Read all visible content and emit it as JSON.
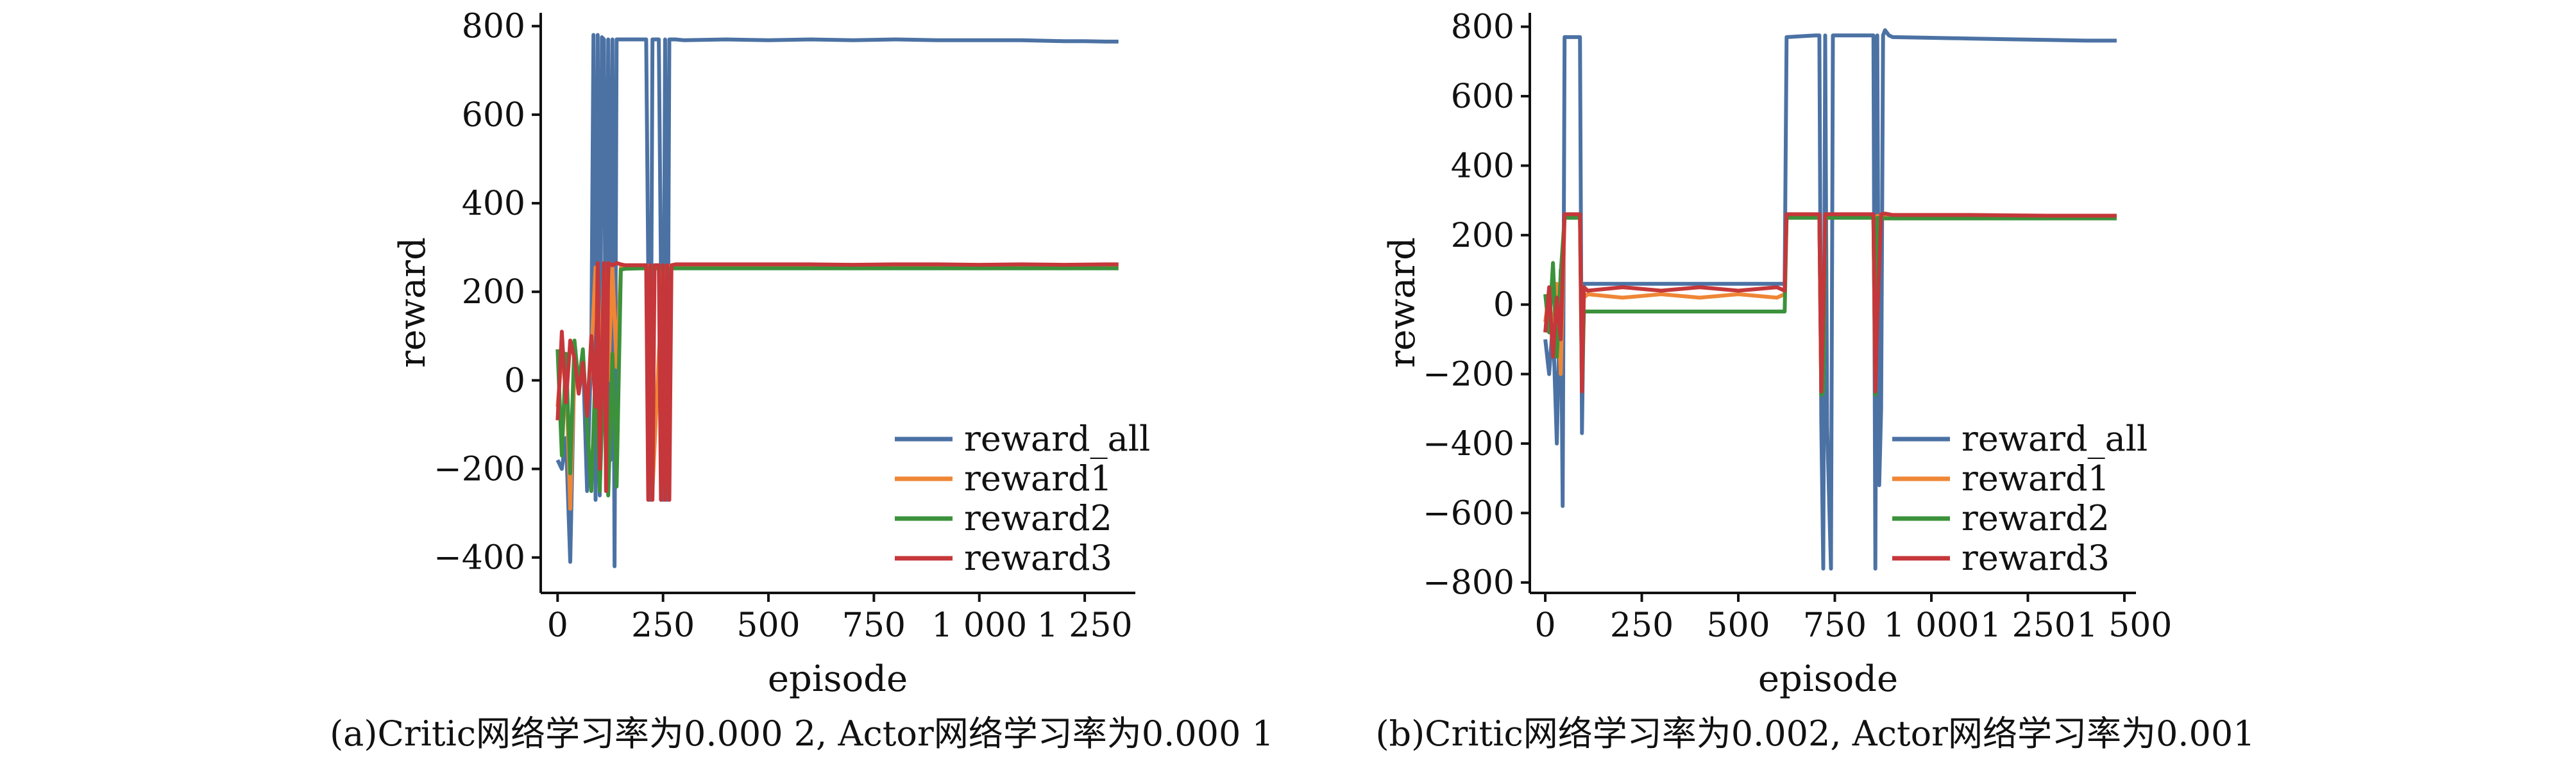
{
  "colors": {
    "reward_all": "#4c72a4",
    "reward1": "#ef8636",
    "reward2": "#3b923b",
    "reward3": "#c5373a"
  },
  "chart_data": [
    {
      "type": "line",
      "xlabel": "episode",
      "ylabel": "reward",
      "xlim": [
        -40,
        1370
      ],
      "ylim": [
        -480,
        830
      ],
      "xticks": [
        0,
        250,
        500,
        750,
        1000,
        1250
      ],
      "xtick_labels": [
        "0",
        "250",
        "500",
        "750",
        "1 000",
        "1 250"
      ],
      "yticks": [
        -400,
        -200,
        0,
        200,
        400,
        600,
        800
      ],
      "ytick_labels": [
        "−400",
        "−200",
        "0",
        "200",
        "400",
        "600",
        "800"
      ],
      "legend": "lower-right",
      "caption": "(a)Critic网络学习率为0.000 2, Actor网络学习率为0.000 1",
      "series": [
        {
          "name": "reward_all",
          "color_key": "reward_all",
          "x": [
            0,
            10,
            20,
            30,
            40,
            50,
            60,
            70,
            80,
            85,
            90,
            95,
            100,
            105,
            110,
            115,
            120,
            125,
            130,
            135,
            140,
            145,
            150,
            160,
            200,
            210,
            220,
            225,
            230,
            240,
            250,
            255,
            260,
            265,
            270,
            280,
            300,
            400,
            500,
            600,
            700,
            800,
            900,
            1000,
            1100,
            1200,
            1250,
            1300,
            1330
          ],
          "y": [
            -180,
            -200,
            -130,
            -410,
            50,
            -20,
            60,
            -250,
            80,
            780,
            -270,
            780,
            -260,
            775,
            770,
            -250,
            770,
            -180,
            770,
            -420,
            770,
            770,
            770,
            770,
            770,
            770,
            -270,
            770,
            770,
            770,
            -270,
            770,
            -270,
            770,
            770,
            770,
            768,
            770,
            768,
            770,
            768,
            770,
            768,
            768,
            768,
            766,
            766,
            765,
            765
          ]
        },
        {
          "name": "reward1",
          "color_key": "reward1",
          "x": [
            0,
            10,
            20,
            30,
            40,
            50,
            60,
            70,
            80,
            90,
            100,
            110,
            120,
            130,
            140,
            150,
            160,
            200,
            220,
            225,
            250,
            255,
            260,
            270,
            300,
            500,
            700,
            900,
            1100,
            1300,
            1330
          ],
          "y": [
            -60,
            60,
            20,
            -290,
            30,
            -20,
            30,
            -60,
            60,
            255,
            -20,
            255,
            0,
            255,
            30,
            255,
            257,
            258,
            258,
            -250,
            258,
            -250,
            258,
            258,
            258,
            258,
            258,
            258,
            258,
            258,
            258
          ]
        },
        {
          "name": "reward2",
          "color_key": "reward2",
          "x": [
            0,
            10,
            20,
            30,
            40,
            50,
            60,
            70,
            80,
            90,
            100,
            110,
            120,
            130,
            140,
            150,
            160,
            200,
            300,
            500,
            700,
            900,
            1100,
            1300,
            1330
          ],
          "y": [
            70,
            -170,
            60,
            -210,
            90,
            -10,
            70,
            -100,
            -250,
            30,
            -250,
            40,
            -260,
            60,
            -240,
            250,
            252,
            253,
            253,
            253,
            253,
            253,
            253,
            253,
            253
          ]
        },
        {
          "name": "reward3",
          "color_key": "reward3",
          "x": [
            0,
            10,
            20,
            30,
            40,
            50,
            60,
            70,
            80,
            90,
            95,
            100,
            110,
            115,
            120,
            130,
            140,
            150,
            160,
            200,
            210,
            215,
            220,
            225,
            230,
            240,
            245,
            250,
            255,
            260,
            265,
            270,
            280,
            300,
            400,
            500,
            600,
            700,
            800,
            900,
            1000,
            1100,
            1200,
            1300,
            1330
          ],
          "y": [
            -90,
            110,
            -50,
            90,
            50,
            -30,
            40,
            -80,
            100,
            -60,
            265,
            -200,
            265,
            -250,
            265,
            260,
            265,
            262,
            260,
            260,
            260,
            -270,
            260,
            -270,
            260,
            260,
            -270,
            260,
            -270,
            260,
            -270,
            260,
            262,
            262,
            262,
            262,
            262,
            261,
            262,
            262,
            261,
            262,
            261,
            262,
            262
          ]
        }
      ]
    },
    {
      "type": "line",
      "xlabel": "episode",
      "ylabel": "reward",
      "xlim": [
        -40,
        1530
      ],
      "ylim": [
        -830,
        840
      ],
      "xticks": [
        0,
        250,
        500,
        750,
        1000,
        1250,
        1500
      ],
      "xtick_labels": [
        "0",
        "250",
        "500",
        "750",
        "1 000",
        "1 250",
        "1 500"
      ],
      "yticks": [
        -800,
        -600,
        -400,
        -200,
        0,
        200,
        400,
        600,
        800
      ],
      "ytick_labels": [
        "−800",
        "−600",
        "−400",
        "−200",
        "0",
        "200",
        "400",
        "600",
        "800"
      ],
      "legend": "lower-right",
      "caption": "(b)Critic网络学习率为0.002, Actor网络学习率为0.001",
      "series": [
        {
          "name": "reward_all",
          "color_key": "reward_all",
          "x": [
            0,
            10,
            20,
            30,
            40,
            45,
            50,
            60,
            80,
            90,
            95,
            100,
            110,
            200,
            300,
            400,
            500,
            600,
            620,
            625,
            700,
            710,
            715,
            720,
            725,
            730,
            740,
            745,
            750,
            800,
            850,
            855,
            860,
            865,
            870,
            875,
            880,
            890,
            900,
            1000,
            1100,
            1200,
            1300,
            1400,
            1480
          ],
          "y": [
            -100,
            -200,
            -50,
            -400,
            100,
            -580,
            770,
            770,
            770,
            770,
            -370,
            60,
            60,
            60,
            60,
            60,
            60,
            60,
            60,
            770,
            775,
            775,
            -340,
            -760,
            775,
            -350,
            -760,
            775,
            775,
            775,
            775,
            -760,
            775,
            -520,
            -300,
            775,
            790,
            775,
            770,
            768,
            766,
            764,
            762,
            760,
            760
          ]
        },
        {
          "name": "reward1",
          "color_key": "reward1",
          "x": [
            0,
            10,
            20,
            30,
            40,
            50,
            60,
            80,
            90,
            95,
            100,
            110,
            200,
            300,
            400,
            500,
            600,
            620,
            625,
            700,
            710,
            715,
            720,
            725,
            800,
            850,
            855,
            860,
            870,
            880,
            900,
            1100,
            1300,
            1480
          ],
          "y": [
            -50,
            40,
            -100,
            60,
            -200,
            255,
            255,
            255,
            255,
            -150,
            20,
            30,
            20,
            30,
            20,
            30,
            20,
            30,
            255,
            255,
            255,
            -240,
            -200,
            255,
            255,
            255,
            -240,
            255,
            255,
            255,
            254,
            254,
            254,
            254
          ]
        },
        {
          "name": "reward2",
          "color_key": "reward2",
          "x": [
            0,
            10,
            20,
            30,
            40,
            50,
            60,
            80,
            90,
            95,
            100,
            110,
            200,
            300,
            400,
            500,
            600,
            620,
            625,
            700,
            710,
            715,
            720,
            725,
            800,
            850,
            855,
            860,
            870,
            880,
            900,
            1100,
            1300,
            1480
          ],
          "y": [
            30,
            -80,
            120,
            -150,
            90,
            250,
            250,
            250,
            250,
            -250,
            -20,
            -20,
            -20,
            -20,
            -20,
            -20,
            -20,
            -20,
            250,
            250,
            250,
            -260,
            -250,
            250,
            250,
            250,
            -260,
            250,
            250,
            248,
            248,
            248,
            248,
            248
          ]
        },
        {
          "name": "reward3",
          "color_key": "reward3",
          "x": [
            0,
            10,
            20,
            30,
            40,
            50,
            60,
            80,
            90,
            95,
            100,
            110,
            200,
            300,
            400,
            500,
            600,
            620,
            625,
            700,
            710,
            715,
            720,
            725,
            800,
            850,
            855,
            860,
            870,
            880,
            900,
            1100,
            1300,
            1480
          ],
          "y": [
            -80,
            50,
            -150,
            20,
            -100,
            260,
            260,
            260,
            260,
            -250,
            50,
            40,
            50,
            40,
            50,
            40,
            50,
            40,
            260,
            260,
            260,
            -250,
            -30,
            260,
            260,
            260,
            -250,
            -40,
            260,
            262,
            258,
            258,
            256,
            256
          ]
        }
      ]
    }
  ]
}
